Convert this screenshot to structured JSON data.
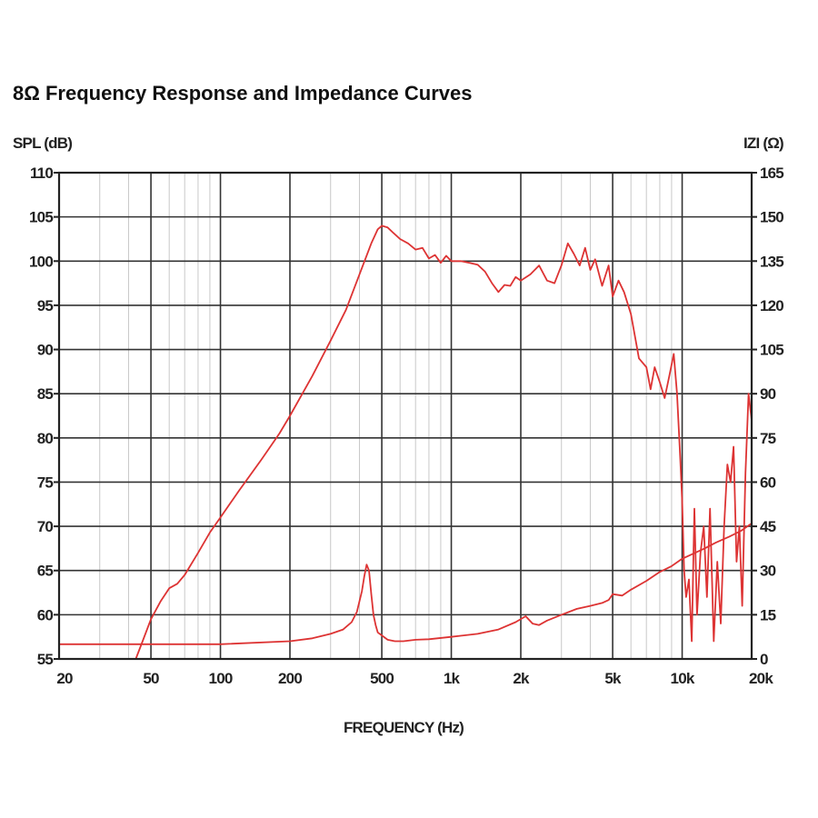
{
  "title": "8Ω Frequency Response and Impedance Curves",
  "chart_data": {
    "type": "line",
    "title": "8Ω Frequency Response and Impedance Curves",
    "xlabel": "FREQUENCY (Hz)",
    "ylabel": "SPL (dB)",
    "y2label": "IZI (Ω)",
    "xscale": "log",
    "xlim": [
      20,
      20000
    ],
    "ylim": [
      55,
      110
    ],
    "y2lim": [
      0,
      165
    ],
    "grid": true,
    "x_ticks": [
      {
        "value": 20,
        "label": "20"
      },
      {
        "value": 50,
        "label": "50"
      },
      {
        "value": 100,
        "label": "100"
      },
      {
        "value": 200,
        "label": "200"
      },
      {
        "value": 500,
        "label": "500"
      },
      {
        "value": 1000,
        "label": "1k"
      },
      {
        "value": 2000,
        "label": "2k"
      },
      {
        "value": 5000,
        "label": "5k"
      },
      {
        "value": 10000,
        "label": "10k"
      },
      {
        "value": 20000,
        "label": "20k"
      }
    ],
    "y_ticks": [
      {
        "value": 110,
        "label": "110"
      },
      {
        "value": 105,
        "label": "105"
      },
      {
        "value": 100,
        "label": "100"
      },
      {
        "value": 95,
        "label": "95"
      },
      {
        "value": 90,
        "label": "90"
      },
      {
        "value": 85,
        "label": "85"
      },
      {
        "value": 80,
        "label": "80"
      },
      {
        "value": 75,
        "label": "75"
      },
      {
        "value": 70,
        "label": "70"
      },
      {
        "value": 65,
        "label": "65"
      },
      {
        "value": 60,
        "label": "60"
      },
      {
        "value": 55,
        "label": "55"
      }
    ],
    "y2_ticks": [
      {
        "value": 165,
        "label": "165"
      },
      {
        "value": 150,
        "label": "150"
      },
      {
        "value": 135,
        "label": "135"
      },
      {
        "value": 120,
        "label": "120"
      },
      {
        "value": 105,
        "label": "105"
      },
      {
        "value": 90,
        "label": "90"
      },
      {
        "value": 75,
        "label": "75"
      },
      {
        "value": 60,
        "label": "60"
      },
      {
        "value": 45,
        "label": "45"
      },
      {
        "value": 30,
        "label": "30"
      },
      {
        "value": 15,
        "label": "15"
      },
      {
        "value": 0,
        "label": "0"
      }
    ],
    "line_color": "#dd3333",
    "series": [
      {
        "name": "SPL",
        "axis": "left",
        "x": [
          43,
          46,
          50,
          55,
          60,
          65,
          70,
          80,
          90,
          100,
          120,
          150,
          180,
          200,
          250,
          300,
          350,
          400,
          450,
          480,
          500,
          530,
          560,
          600,
          650,
          700,
          750,
          800,
          850,
          900,
          950,
          1000,
          1100,
          1200,
          1300,
          1400,
          1500,
          1600,
          1700,
          1800,
          1900,
          2000,
          2200,
          2400,
          2600,
          2800,
          3000,
          3200,
          3400,
          3600,
          3800,
          4000,
          4200,
          4500,
          4800,
          5000,
          5300,
          5600,
          6000,
          6500,
          7000,
          7300,
          7600,
          8000,
          8400,
          8800,
          9200,
          9500,
          9800,
          10000,
          10200,
          10400,
          10700,
          11000,
          11300,
          11600,
          12000,
          12400,
          12800,
          13200,
          13700,
          14200,
          14700,
          15200,
          15700,
          16200,
          16700,
          17200,
          17700,
          18200,
          18800,
          19400,
          20000
        ],
        "y": [
          55,
          57,
          59.5,
          61.5,
          63,
          63.5,
          64.5,
          67,
          69.3,
          71,
          74,
          77.5,
          80.5,
          82.5,
          87,
          91,
          94.5,
          98.5,
          102,
          103.6,
          104,
          103.8,
          103.2,
          102.5,
          102,
          101.3,
          101.5,
          100.3,
          100.7,
          99.8,
          100.6,
          100,
          100,
          99.8,
          99.6,
          98.8,
          97.5,
          96.5,
          97.3,
          97.2,
          98.2,
          97.8,
          98.5,
          99.5,
          97.8,
          97.5,
          99.5,
          102,
          100.8,
          99.5,
          101.5,
          99,
          100.2,
          97.2,
          99.5,
          96,
          97.8,
          96.5,
          94,
          89,
          88,
          85.5,
          88,
          86.3,
          84.5,
          87,
          89.5,
          85,
          78,
          73,
          65,
          62,
          64,
          57,
          72,
          60,
          67,
          70,
          62,
          72,
          57,
          66,
          59,
          70,
          77,
          75,
          79,
          66,
          70,
          61,
          76,
          85,
          82
        ]
      },
      {
        "name": "Impedance",
        "axis": "right",
        "x": [
          20,
          50,
          100,
          200,
          250,
          300,
          340,
          370,
          390,
          410,
          420,
          430,
          440,
          450,
          460,
          470,
          480,
          500,
          530,
          570,
          620,
          700,
          800,
          1000,
          1300,
          1600,
          1900,
          2100,
          2250,
          2400,
          2600,
          3000,
          3500,
          4000,
          4500,
          4800,
          5000,
          5500,
          6000,
          7000,
          8000,
          9000,
          10000,
          11000,
          12500,
          14000,
          16000,
          18000,
          20000
        ],
        "y": [
          5,
          5,
          5,
          6,
          7,
          8.5,
          10,
          12.5,
          16,
          23,
          28,
          32,
          30,
          22,
          15,
          11.5,
          9,
          8,
          6.5,
          6,
          6,
          6.5,
          6.7,
          7.5,
          8.5,
          10,
          12.5,
          14.5,
          12,
          11.5,
          13,
          15,
          17,
          18,
          19,
          20,
          22,
          21.5,
          23.5,
          26.5,
          29.5,
          31.5,
          34,
          35.5,
          37.5,
          39.5,
          41.5,
          43.5,
          46
        ]
      }
    ]
  }
}
